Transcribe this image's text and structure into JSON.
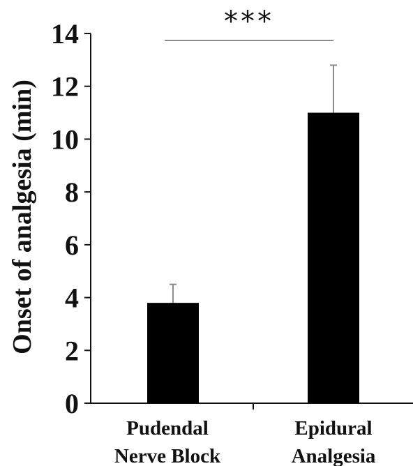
{
  "chart_data": {
    "type": "bar",
    "title": "",
    "xlabel": "",
    "ylabel": "Onset of analgesia (min)",
    "categories": [
      [
        "Pudendal",
        "Nerve Block"
      ],
      [
        "Epidural",
        "Analgesia"
      ]
    ],
    "values": [
      3.8,
      11.0
    ],
    "error_upper": [
      4.5,
      12.8
    ],
    "ylim": [
      0,
      14
    ],
    "yticks": [
      "0",
      "2",
      "4",
      "6",
      "8",
      "10",
      "12",
      "14"
    ],
    "grid": false,
    "bar_color": "#000000",
    "error_bar_color": "#8c8c8c",
    "significance": {
      "label": "***",
      "between": [
        0,
        1
      ]
    }
  }
}
